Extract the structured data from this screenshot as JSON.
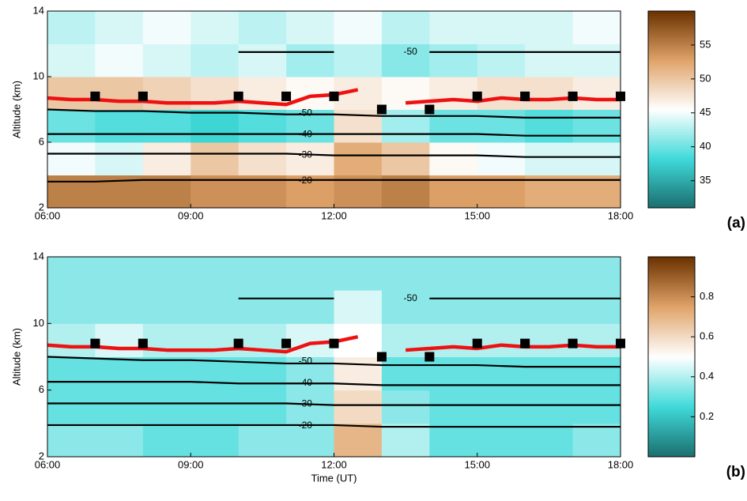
{
  "chart_data": [
    {
      "type": "heatmap",
      "panel_label": "(a)",
      "ylabel": "Altitude (km)",
      "xlim": [
        6,
        18
      ],
      "xticks": [
        {
          "value": 6,
          "label": "06:00"
        },
        {
          "value": 9,
          "label": "09:00"
        },
        {
          "value": 12,
          "label": "12:00"
        },
        {
          "value": 15,
          "label": "15:00"
        },
        {
          "value": 18,
          "label": "18:00"
        }
      ],
      "ylim": [
        2,
        14
      ],
      "yticks": [
        2,
        6,
        10,
        14
      ],
      "clim": [
        31,
        60
      ],
      "cticks": [
        35,
        40,
        45,
        50,
        55
      ],
      "colormap": [
        "#1b6e6e",
        "#3fd9d9",
        "#ffffff",
        "#e0a46a",
        "#6b3200"
      ],
      "x_bins": [
        6,
        7,
        8,
        9,
        10,
        11,
        12,
        13,
        14,
        15,
        16,
        17,
        18
      ],
      "y_bins": [
        2,
        4,
        6,
        8,
        10,
        12,
        14
      ],
      "z": [
        [
          55,
          55,
          55,
          54,
          54,
          53,
          54,
          55,
          53,
          53,
          52,
          52
        ],
        [
          45,
          44,
          47,
          50,
          48,
          47,
          52,
          50,
          46,
          45,
          44,
          44
        ],
        [
          40,
          39,
          39,
          38,
          39,
          40,
          48,
          42,
          40,
          40,
          39,
          40
        ],
        [
          50,
          50,
          49,
          48,
          47,
          46,
          47,
          46,
          47,
          48,
          48,
          47
        ],
        [
          44,
          45,
          44,
          43,
          44,
          42,
          43,
          41,
          42,
          43,
          44,
          44
        ],
        [
          43,
          44,
          45,
          44,
          43,
          44,
          45,
          43,
          44,
          44,
          44,
          45
        ]
      ],
      "contour_x": [
        6,
        7,
        8,
        9,
        10,
        11,
        12,
        13,
        14,
        15,
        16,
        17,
        18
      ],
      "contours": [
        {
          "level": -50,
          "values": [
            null,
            null,
            null,
            null,
            11.5,
            11.5,
            11.5,
            null,
            11.5,
            11.5,
            11.5,
            11.5,
            11.5
          ]
        },
        {
          "level": -50,
          "values": [
            8.0,
            7.9,
            7.9,
            7.8,
            7.8,
            7.7,
            7.7,
            7.6,
            7.6,
            7.6,
            7.5,
            7.5,
            7.5
          ]
        },
        {
          "level": -40,
          "values": [
            6.5,
            6.5,
            6.5,
            6.5,
            6.5,
            6.5,
            6.5,
            6.5,
            6.5,
            6.5,
            6.4,
            6.4,
            6.4
          ]
        },
        {
          "level": -30,
          "values": [
            5.3,
            5.3,
            5.3,
            5.3,
            5.3,
            5.3,
            5.2,
            5.2,
            5.2,
            5.2,
            5.1,
            5.1,
            5.1
          ]
        },
        {
          "level": -20,
          "values": [
            3.6,
            3.6,
            3.7,
            3.7,
            3.7,
            3.7,
            3.7,
            3.7,
            3.7,
            3.7,
            3.7,
            3.7,
            3.7
          ]
        }
      ],
      "tropopause_x": [
        6,
        6.5,
        7,
        7.5,
        8,
        8.5,
        9,
        9.5,
        10,
        10.5,
        11,
        11.5,
        12,
        12.5,
        13,
        13.5,
        14,
        14.5,
        15,
        15.5,
        16,
        16.5,
        17,
        17.5,
        18
      ],
      "tropopause": [
        8.7,
        8.6,
        8.6,
        8.5,
        8.5,
        8.4,
        8.4,
        8.4,
        8.5,
        8.4,
        8.3,
        8.8,
        8.9,
        9.2,
        null,
        8.4,
        8.5,
        8.6,
        8.5,
        8.7,
        8.6,
        8.6,
        8.7,
        8.6,
        8.6
      ],
      "squares_x": [
        7,
        8,
        10,
        11,
        12,
        13,
        14,
        15,
        16,
        17,
        18
      ],
      "squares": [
        8.8,
        8.8,
        8.8,
        8.8,
        8.8,
        8.0,
        8.0,
        8.8,
        8.8,
        8.8,
        8.8
      ]
    },
    {
      "type": "heatmap",
      "panel_label": "(b)",
      "ylabel": "Altitude (km)",
      "xlabel": "Time  (UT)",
      "xlim": [
        6,
        18
      ],
      "xticks": [
        {
          "value": 6,
          "label": "06:00"
        },
        {
          "value": 9,
          "label": "09:00"
        },
        {
          "value": 12,
          "label": "12:00"
        },
        {
          "value": 15,
          "label": "15:00"
        },
        {
          "value": 18,
          "label": "18:00"
        }
      ],
      "ylim": [
        2,
        14
      ],
      "yticks": [
        2,
        6,
        10,
        14
      ],
      "clim": [
        0,
        1
      ],
      "cticks": [
        0.2,
        0.4,
        0.6,
        0.8
      ],
      "colormap": [
        "#1b6e6e",
        "#3fd9d9",
        "#ffffff",
        "#e0a46a",
        "#6b3200"
      ],
      "x_bins": [
        6,
        7,
        8,
        9,
        10,
        11,
        12,
        13,
        14,
        15,
        16,
        17,
        18
      ],
      "y_bins": [
        2,
        4,
        6,
        8,
        10,
        12,
        14
      ],
      "z": [
        [
          0.35,
          0.35,
          0.3,
          0.3,
          0.35,
          0.35,
          0.7,
          0.4,
          0.3,
          0.3,
          0.3,
          0.35
        ],
        [
          0.3,
          0.3,
          0.3,
          0.3,
          0.3,
          0.35,
          0.6,
          0.35,
          0.3,
          0.3,
          0.3,
          0.3
        ],
        [
          0.3,
          0.3,
          0.3,
          0.3,
          0.3,
          0.35,
          0.55,
          0.3,
          0.3,
          0.3,
          0.3,
          0.3
        ],
        [
          0.4,
          0.45,
          0.4,
          0.4,
          0.4,
          0.45,
          0.5,
          0.4,
          0.4,
          0.4,
          0.4,
          0.4
        ],
        [
          0.35,
          0.35,
          0.35,
          0.35,
          0.35,
          0.35,
          0.45,
          0.35,
          0.35,
          0.35,
          0.35,
          0.35
        ],
        [
          0.35,
          0.35,
          0.35,
          0.35,
          0.35,
          0.35,
          0.35,
          0.35,
          0.35,
          0.35,
          0.35,
          0.35
        ]
      ],
      "contour_x": [
        6,
        7,
        8,
        9,
        10,
        11,
        12,
        13,
        14,
        15,
        16,
        17,
        18
      ],
      "contours": [
        {
          "level": -50,
          "values": [
            null,
            null,
            null,
            null,
            11.5,
            11.5,
            11.5,
            null,
            11.5,
            11.5,
            11.5,
            11.5,
            11.5
          ]
        },
        {
          "level": -50,
          "values": [
            8.0,
            7.9,
            7.8,
            7.8,
            7.7,
            7.6,
            7.6,
            7.5,
            7.5,
            7.5,
            7.4,
            7.4,
            7.4
          ]
        },
        {
          "level": -40,
          "values": [
            6.5,
            6.5,
            6.5,
            6.5,
            6.4,
            6.4,
            6.4,
            6.3,
            6.3,
            6.3,
            6.3,
            6.3,
            6.3
          ]
        },
        {
          "level": -30,
          "values": [
            5.2,
            5.2,
            5.2,
            5.2,
            5.2,
            5.2,
            5.1,
            5.1,
            5.1,
            5.1,
            5.1,
            5.1,
            5.1
          ]
        },
        {
          "level": -20,
          "values": [
            3.9,
            3.9,
            3.9,
            3.9,
            3.9,
            3.9,
            3.9,
            3.8,
            3.8,
            3.8,
            3.8,
            3.8,
            3.8
          ]
        }
      ],
      "tropopause_x": [
        6,
        6.5,
        7,
        7.5,
        8,
        8.5,
        9,
        9.5,
        10,
        10.5,
        11,
        11.5,
        12,
        12.5,
        13,
        13.5,
        14,
        14.5,
        15,
        15.5,
        16,
        16.5,
        17,
        17.5,
        18
      ],
      "tropopause": [
        8.7,
        8.6,
        8.6,
        8.5,
        8.5,
        8.4,
        8.4,
        8.4,
        8.5,
        8.4,
        8.3,
        8.8,
        8.9,
        9.2,
        null,
        8.4,
        8.5,
        8.6,
        8.5,
        8.7,
        8.6,
        8.6,
        8.7,
        8.6,
        8.6
      ],
      "squares_x": [
        7,
        8,
        10,
        11,
        12,
        13,
        14,
        15,
        16,
        17,
        18
      ],
      "squares": [
        8.8,
        8.8,
        8.8,
        8.8,
        8.8,
        8.0,
        8.0,
        8.8,
        8.8,
        8.8,
        8.8
      ]
    }
  ]
}
